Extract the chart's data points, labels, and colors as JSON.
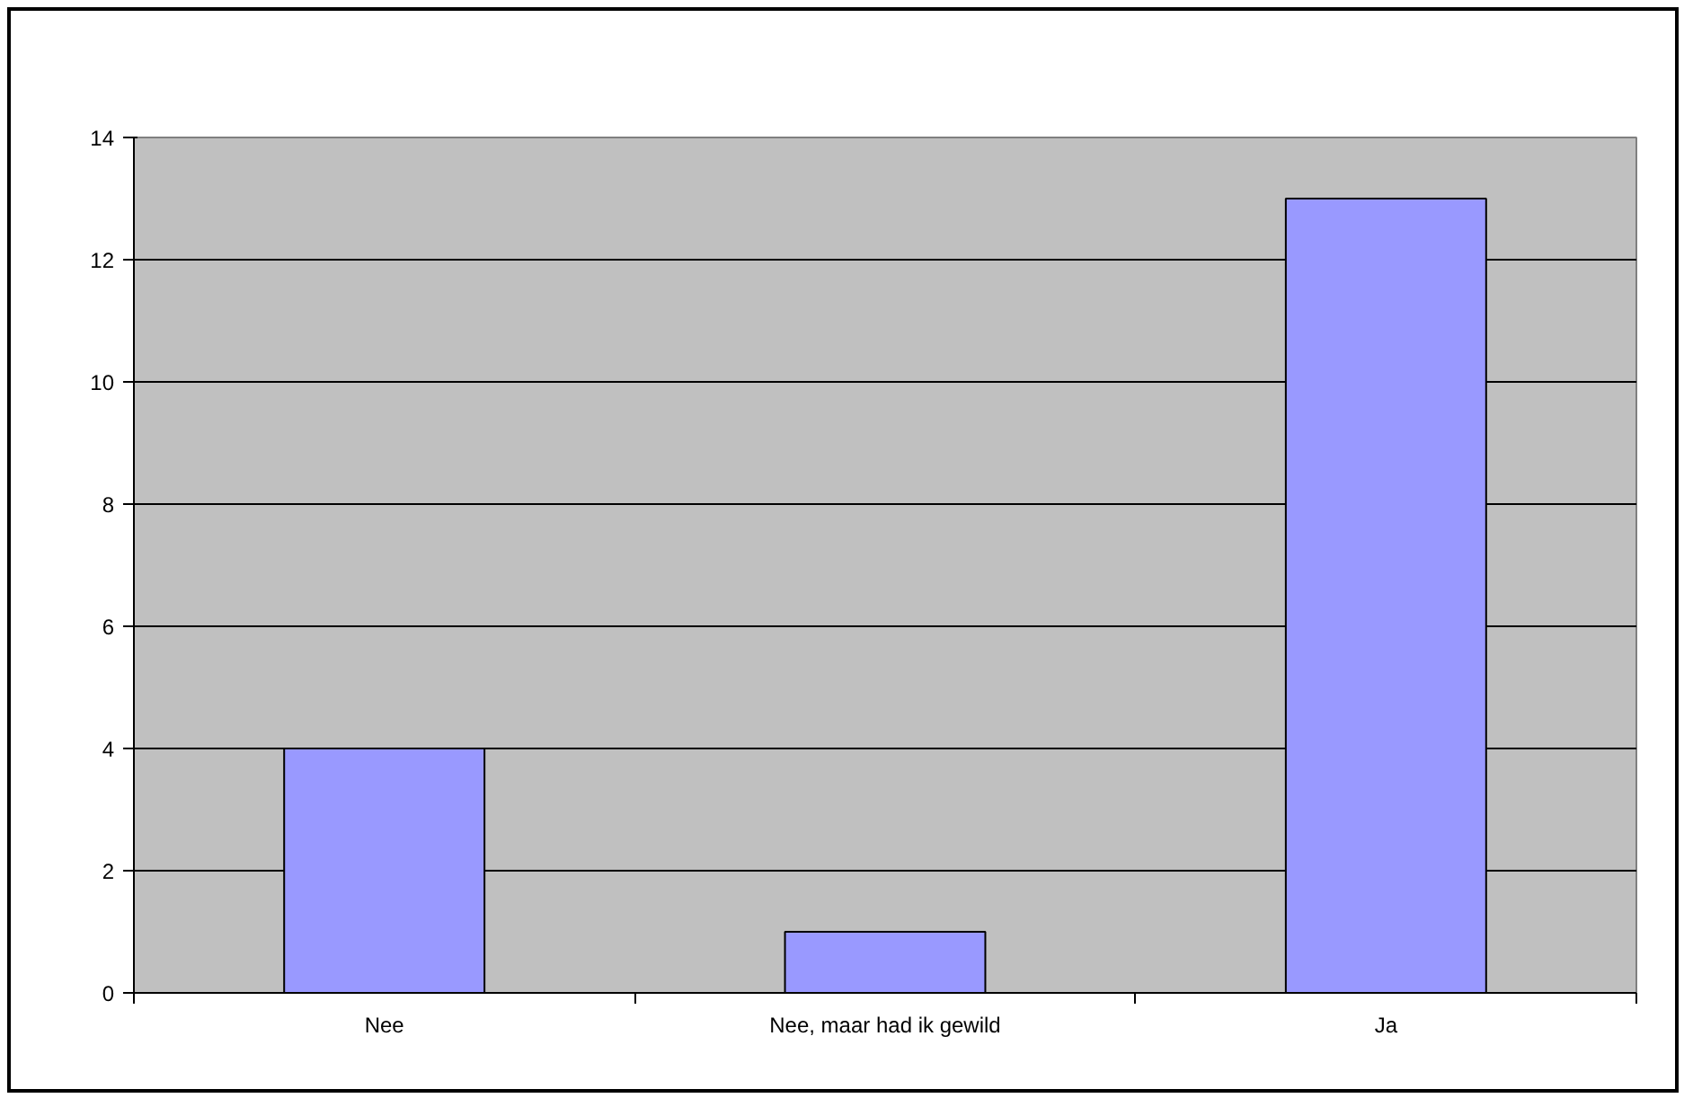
{
  "chart_data": {
    "type": "bar",
    "categories": [
      "Nee",
      "Nee, maar had ik gewild",
      "Ja"
    ],
    "values": [
      4,
      1,
      13
    ],
    "color": "#9999ff",
    "ylim": [
      0,
      14
    ],
    "yticks": [
      0,
      2,
      4,
      6,
      8,
      10,
      12,
      14
    ],
    "grid": "y"
  }
}
